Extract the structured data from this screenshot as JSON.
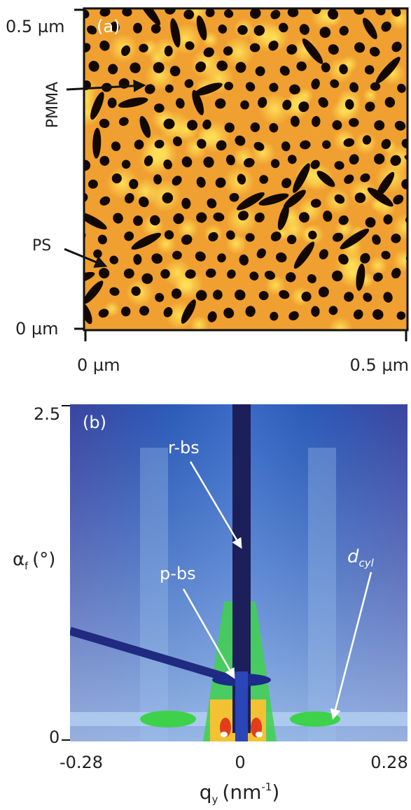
{
  "panels": [
    {
      "label": "(a)",
      "y_ticks": [
        "0.5 µm",
        "0 µm"
      ],
      "x_ticks": [
        "0 µm",
        "0.5 µm"
      ],
      "annotations": [
        "PMMA",
        "PS"
      ]
    },
    {
      "label": "(b)",
      "y_ticks": [
        "2.5",
        "0"
      ],
      "x_ticks": [
        "-0.28",
        "0",
        "0.28"
      ],
      "y_label": {
        "symbol": "α",
        "subscript": "f",
        "unit": "(°)"
      },
      "x_label": {
        "symbol": "q",
        "subscript": "y",
        "unit_open": "(nm",
        "superscript": "-1",
        "unit_close": ")"
      },
      "annotations": [
        "r-bs",
        "p-bs",
        {
          "symbol": "d",
          "subscript": "cyl"
        }
      ]
    }
  ]
}
